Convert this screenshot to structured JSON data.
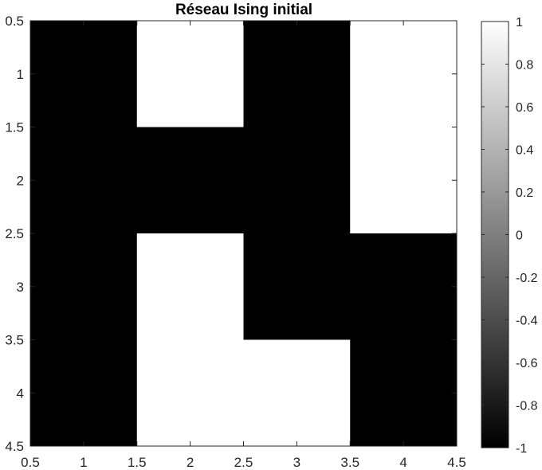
{
  "chart_data": {
    "type": "heatmap",
    "title": "Réseau Ising initial",
    "xlabel": "",
    "ylabel": "",
    "x_centers": [
      1,
      2,
      3,
      4
    ],
    "y_centers": [
      1,
      2,
      3,
      4
    ],
    "xlim": [
      0.5,
      4.5
    ],
    "ylim": [
      0.5,
      4.5
    ],
    "y_direction": "reverse",
    "values": [
      [
        -1,
        1,
        -1,
        1
      ],
      [
        -1,
        -1,
        -1,
        1
      ],
      [
        -1,
        1,
        -1,
        -1
      ],
      [
        -1,
        1,
        1,
        -1
      ]
    ],
    "x_ticks": [
      "0.5",
      "1",
      "1.5",
      "2",
      "2.5",
      "3",
      "3.5",
      "4",
      "4.5"
    ],
    "y_ticks": [
      "0.5",
      "1",
      "1.5",
      "2",
      "2.5",
      "3",
      "3.5",
      "4",
      "4.5"
    ],
    "colormap": "gray",
    "color_low": "#000000",
    "color_high": "#ffffff",
    "clim": [
      -1,
      1
    ],
    "colorbar_ticks": [
      "1",
      "0.8",
      "0.6",
      "0.4",
      "0.2",
      "0",
      "-0.2",
      "-0.4",
      "-0.6",
      "-0.8",
      "-1"
    ],
    "colorbar_location": "right",
    "grid": false
  }
}
